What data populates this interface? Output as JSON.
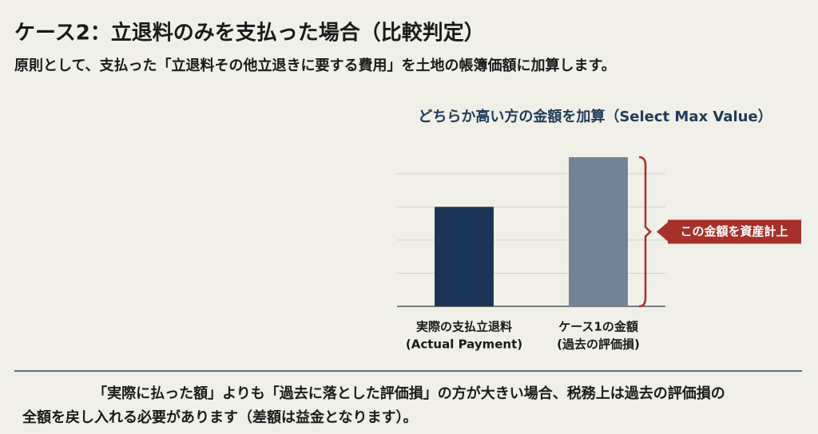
{
  "header": {
    "title": "ケース2：立退料のみを支払った場合（比較判定）",
    "subtitle": "原則として、支払った「立退料その他立退きに要する費用」を土地の帳簿価額に加算します。"
  },
  "chart_data": {
    "type": "bar",
    "title": "どちらか高い方の金額を加算（Select Max Value）",
    "categories": [
      [
        "実際の支払立退料",
        "(Actual Payment)"
      ],
      [
        "ケース1の金額",
        "(過去の評価損)"
      ]
    ],
    "values": [
      3,
      4.5
    ],
    "colors": [
      "#1b3556",
      "#728398"
    ],
    "ylim": [
      0,
      4.5
    ],
    "yticks": [
      0,
      1,
      2,
      3,
      4
    ],
    "grid": true,
    "annotation": "この金額を資産計上"
  },
  "footer": {
    "lines": [
      "「実際に払った額」よりも「過去に落とした評価損」の方が大きい場合、税務上は過去の評価損の",
      "全額を戻し入れる必要があります（差額は益金となります）。"
    ]
  }
}
